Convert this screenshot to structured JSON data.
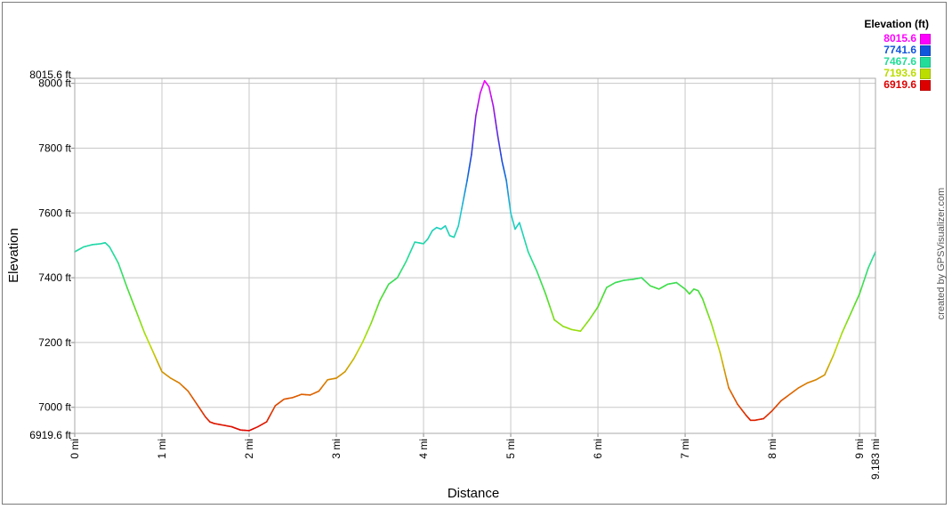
{
  "chart_data": {
    "type": "line",
    "xlabel": "Distance",
    "ylabel": "Elevation",
    "x_unit": "mi",
    "y_unit": "ft",
    "xlim": [
      0,
      9.183
    ],
    "ylim": [
      6919.6,
      8015.6
    ],
    "x_ticks": [
      "0 mi",
      "1 mi",
      "2 mi",
      "3 mi",
      "4 mi",
      "5 mi",
      "6 mi",
      "7 mi",
      "8 mi",
      "9 mi",
      "9.183 mi"
    ],
    "y_ticks": [
      "6919.6 ft",
      "7000 ft",
      "7200 ft",
      "7400 ft",
      "7600 ft",
      "7800 ft",
      "8000 ft",
      "8015.6 ft"
    ],
    "grid": true,
    "legend": {
      "title": "Elevation (ft)",
      "placement": "top-right",
      "entries": [
        {
          "label": "8015.6",
          "color": "#ff00ff"
        },
        {
          "label": "7741.6",
          "color": "#1155dd"
        },
        {
          "label": "7467.6",
          "color": "#22dd99"
        },
        {
          "label": "7193.6",
          "color": "#bbdd00"
        },
        {
          "label": "6919.6",
          "color": "#dd0000"
        }
      ]
    },
    "credit": "created by GPSVisualizer.com",
    "series": [
      {
        "x": [
          0,
          0.1,
          0.2,
          0.3,
          0.35,
          0.4,
          0.5,
          0.6,
          0.7,
          0.8,
          0.9,
          0.95,
          1.0,
          1.1,
          1.2,
          1.3,
          1.4,
          1.5,
          1.55,
          1.6,
          1.7,
          1.8,
          1.85,
          1.9,
          2.0,
          2.1,
          2.2,
          2.3,
          2.35,
          2.4,
          2.5,
          2.6,
          2.7,
          2.8,
          2.9,
          3.0,
          3.1,
          3.2,
          3.3,
          3.4,
          3.5,
          3.6,
          3.7,
          3.8,
          3.9,
          4.0,
          4.05,
          4.1,
          4.15,
          4.2,
          4.25,
          4.3,
          4.35,
          4.4,
          4.45,
          4.5,
          4.55,
          4.6,
          4.65,
          4.7,
          4.75,
          4.8,
          4.85,
          4.9,
          4.95,
          5.0,
          5.05,
          5.1,
          5.2,
          5.3,
          5.4,
          5.5,
          5.6,
          5.7,
          5.8,
          5.9,
          6.0,
          6.1,
          6.2,
          6.3,
          6.4,
          6.5,
          6.6,
          6.7,
          6.8,
          6.9,
          7.0,
          7.05,
          7.1,
          7.15,
          7.2,
          7.3,
          7.4,
          7.5,
          7.6,
          7.7,
          7.75,
          7.8,
          7.9,
          8.0,
          8.1,
          8.2,
          8.3,
          8.4,
          8.5,
          8.6,
          8.7,
          8.8,
          8.9,
          9.0,
          9.1,
          9.183
        ],
        "y": [
          7480,
          7495,
          7502,
          7505,
          7508,
          7495,
          7445,
          7370,
          7300,
          7230,
          7170,
          7140,
          7110,
          7090,
          7075,
          7050,
          7010,
          6970,
          6955,
          6950,
          6945,
          6940,
          6935,
          6930,
          6928,
          6940,
          6955,
          7005,
          7015,
          7025,
          7030,
          7040,
          7038,
          7050,
          7085,
          7090,
          7110,
          7150,
          7200,
          7260,
          7330,
          7380,
          7400,
          7450,
          7510,
          7505,
          7520,
          7545,
          7555,
          7550,
          7560,
          7530,
          7525,
          7560,
          7630,
          7700,
          7780,
          7900,
          7970,
          8008,
          7990,
          7930,
          7840,
          7760,
          7700,
          7600,
          7550,
          7570,
          7480,
          7420,
          7350,
          7270,
          7250,
          7240,
          7235,
          7270,
          7310,
          7370,
          7385,
          7392,
          7395,
          7400,
          7375,
          7365,
          7380,
          7385,
          7365,
          7350,
          7365,
          7360,
          7335,
          7260,
          7170,
          7060,
          7010,
          6975,
          6960,
          6960,
          6965,
          6990,
          7020,
          7040,
          7060,
          7075,
          7085,
          7100,
          7160,
          7230,
          7290,
          7350,
          7430,
          7480
        ]
      }
    ]
  }
}
